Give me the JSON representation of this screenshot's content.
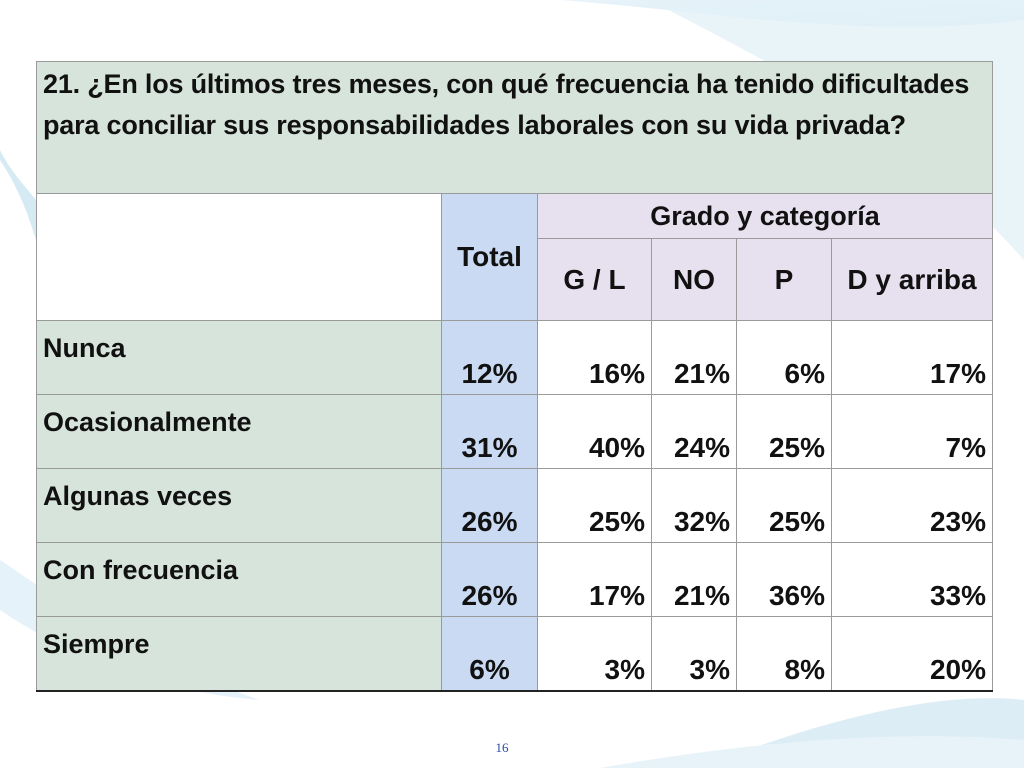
{
  "question": "21. ¿En los últimos tres meses, con qué frecuencia ha tenido dificultades para conciliar sus responsabilidades laborales con su vida privada?",
  "header": {
    "total": "Total",
    "group": "Grado y categoría",
    "subcolumns": [
      "G / L",
      "NO",
      "P",
      "D y arriba"
    ]
  },
  "rows": [
    {
      "label": "Nunca",
      "total": "12%",
      "values": [
        "16%",
        "21%",
        "6%",
        "17%"
      ]
    },
    {
      "label": "Ocasionalmente",
      "total": "31%",
      "values": [
        "40%",
        "24%",
        "25%",
        "7%"
      ]
    },
    {
      "label": "Algunas veces",
      "total": "26%",
      "values": [
        "25%",
        "32%",
        "25%",
        "23%"
      ]
    },
    {
      "label": "Con frecuencia",
      "total": "26%",
      "values": [
        "17%",
        "21%",
        "36%",
        "33%"
      ]
    },
    {
      "label": "Siempre",
      "total": "6%",
      "values": [
        "3%",
        "3%",
        "8%",
        "20%"
      ]
    }
  ],
  "page_number": "16",
  "colors": {
    "row_label_bg": "#d7e4dc",
    "total_bg": "#c9daf2",
    "group_header_bg": "#e7e0ef",
    "page_number": "#2b4a9a"
  }
}
